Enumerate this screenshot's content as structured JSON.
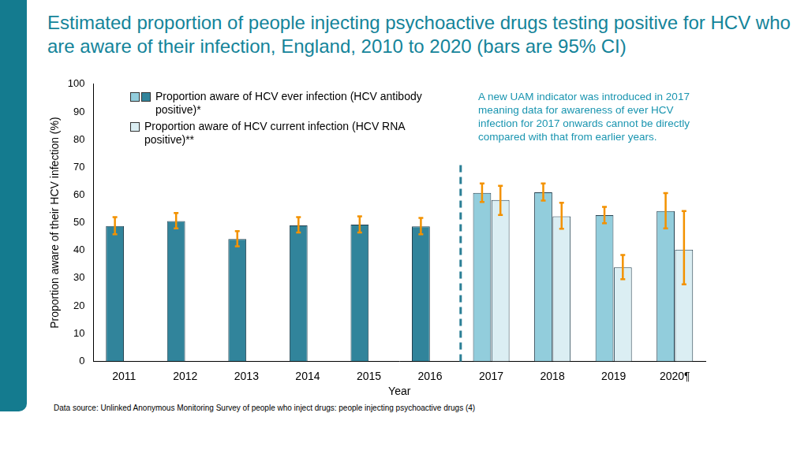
{
  "chart_data": {
    "type": "bar",
    "title": "Estimated proportion of people injecting psychoactive drugs testing positive for HCV who are aware of their infection, England, 2010 to 2020 (bars are 95% CI)",
    "x_label": "Year",
    "y_label": "Proportion aware of their HCV infection (%)",
    "annotation": "A new UAM indicator was introduced in 2017 meaning data for awareness of ever HCV infection for 2017 onwards cannot be directly compared with that from earlier years.",
    "source": "Data source: Unlinked Anonymous Monitoring Survey of people who inject drugs: people injecting psychoactive drugs (4)",
    "categories": [
      "2011",
      "2012",
      "2013",
      "2014",
      "2015",
      "2016",
      "2017",
      "2018",
      "2019",
      "2020¶"
    ],
    "series": [
      {
        "name": "Proportion aware of HCV  ever infection (HCV antibody positive)*",
        "color": "#31849b",
        "colors": [
          "#31849b",
          "#31849b",
          "#31849b",
          "#31849b",
          "#31849b",
          "#31849b",
          "#92cddc",
          "#92cddc",
          "#92cddc",
          "#92cddc"
        ],
        "values": [
          48.8,
          50.6,
          44.1,
          49.0,
          49.3,
          48.7,
          60.8,
          61.0,
          52.7,
          54.2
        ],
        "error_low": [
          45.8,
          48.0,
          41.5,
          46.5,
          46.5,
          45.8,
          57.5,
          58.0,
          49.8,
          48.0
        ],
        "error_high": [
          52.0,
          53.5,
          47.0,
          52.0,
          52.3,
          51.7,
          64.2,
          64.2,
          55.7,
          60.7
        ]
      },
      {
        "name": "Proportion aware of HCV current infection (HCV RNA positive)**",
        "color": "#dbeef3",
        "values": [
          null,
          null,
          null,
          null,
          null,
          null,
          58.2,
          52.3,
          33.9,
          40.3
        ],
        "error_low": [
          null,
          null,
          null,
          null,
          null,
          null,
          52.8,
          47.8,
          29.6,
          27.8
        ],
        "error_high": [
          null,
          null,
          null,
          null,
          null,
          null,
          63.3,
          57.2,
          38.4,
          54.2
        ]
      }
    ],
    "ylim": [
      0,
      100
    ],
    "yticks": [
      0,
      10,
      20,
      30,
      40,
      50,
      60,
      70,
      80,
      90,
      100
    ],
    "grid": false,
    "legend": "upper left",
    "data_labels": false
  }
}
